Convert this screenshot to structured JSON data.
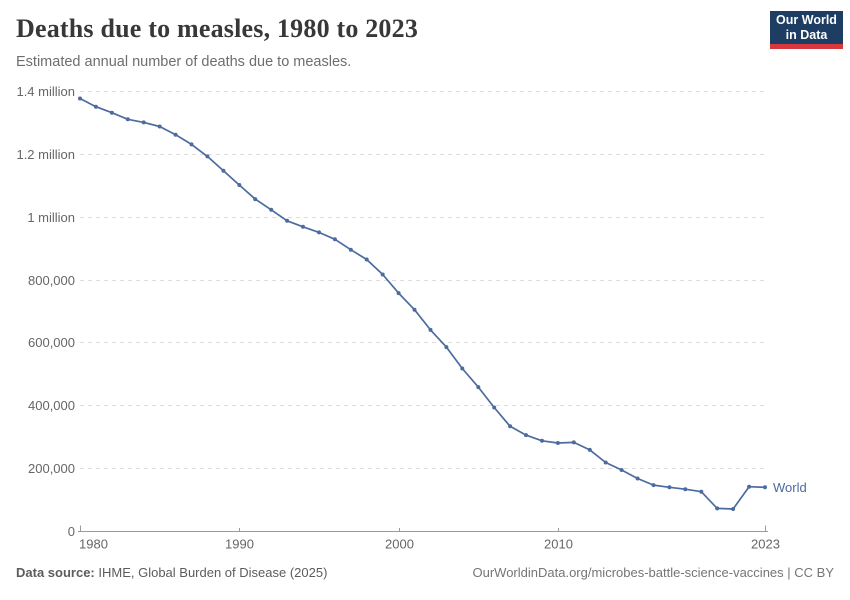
{
  "header": {
    "title": "Deaths due to measles, 1980 to 2023",
    "subtitle": "Estimated annual number of deaths due to measles.",
    "logo": {
      "line1": "Our World",
      "line2": "in Data"
    }
  },
  "footer": {
    "source_label": "Data source:",
    "source_text": " IHME, Global Burden of Disease (2025)",
    "attribution": "OurWorldinData.org/microbes-battle-science-vaccines | CC BY"
  },
  "colors": {
    "line": "#4c6b9e",
    "grid": "#dcdcdc",
    "axis": "#9a9a9a",
    "tick_text": "#666666",
    "logo_navy": "#1d3d63",
    "logo_red": "#d6383d",
    "title_text": "#383838",
    "subtitle_text": "#6e6e6e"
  },
  "chart_data": {
    "type": "line",
    "title": "Deaths due to measles, 1980 to 2023",
    "subtitle": "Estimated annual number of deaths due to measles.",
    "xlabel": "",
    "ylabel": "",
    "xlim": [
      1980,
      2023
    ],
    "ylim": [
      0,
      1400000
    ],
    "grid": "horizontal-dashed",
    "legend_position": "end-of-line-label",
    "x": [
      1980,
      1981,
      1982,
      1983,
      1984,
      1985,
      1986,
      1987,
      1988,
      1989,
      1990,
      1991,
      1992,
      1993,
      1994,
      1995,
      1996,
      1997,
      1998,
      1999,
      2000,
      2001,
      2002,
      2003,
      2004,
      2005,
      2006,
      2007,
      2008,
      2009,
      2010,
      2011,
      2012,
      2013,
      2014,
      2015,
      2016,
      2017,
      2018,
      2019,
      2020,
      2021,
      2022,
      2023
    ],
    "series": [
      {
        "name": "World",
        "values": [
          1376000,
          1350000,
          1331000,
          1310000,
          1300000,
          1287000,
          1261000,
          1230000,
          1192000,
          1146000,
          1101000,
          1056000,
          1022000,
          987000,
          968000,
          950000,
          928000,
          895000,
          864000,
          816000,
          757000,
          704000,
          640000,
          585000,
          517000,
          458000,
          393000,
          333000,
          305000,
          287000,
          280000,
          282000,
          258000,
          218000,
          194000,
          167000,
          146000,
          139000,
          133000,
          125000,
          72000,
          70000,
          141000,
          139000
        ]
      }
    ],
    "x_ticks": [
      {
        "value": 1980,
        "label": "1980"
      },
      {
        "value": 1990,
        "label": "1990"
      },
      {
        "value": 2000,
        "label": "2000"
      },
      {
        "value": 2010,
        "label": "2010"
      },
      {
        "value": 2023,
        "label": "2023"
      }
    ],
    "y_ticks": [
      {
        "value": 0,
        "label": "0"
      },
      {
        "value": 200000,
        "label": "200,000"
      },
      {
        "value": 400000,
        "label": "400,000"
      },
      {
        "value": 600000,
        "label": "600,000"
      },
      {
        "value": 800000,
        "label": "800,000"
      },
      {
        "value": 1000000,
        "label": "1 million"
      },
      {
        "value": 1200000,
        "label": "1.2 million"
      },
      {
        "value": 1400000,
        "label": "1.4 million"
      }
    ]
  }
}
